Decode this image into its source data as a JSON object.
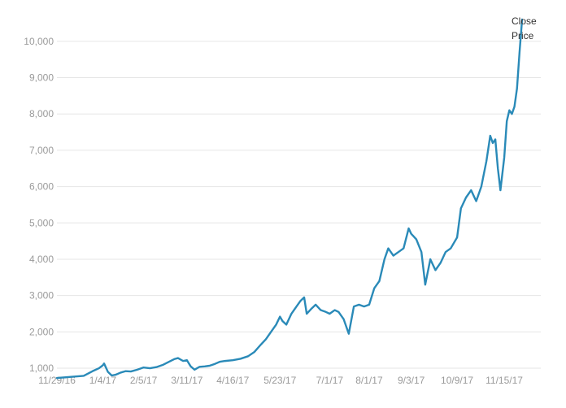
{
  "chart_data": {
    "type": "line",
    "title": "",
    "xlabel": "",
    "ylabel": "",
    "legend": {
      "lines": [
        "Close",
        "Price"
      ],
      "placement": "top-right"
    },
    "grid": {
      "horizontal": true,
      "vertical": false
    },
    "ylim": [
      800,
      10600
    ],
    "yticks": [
      1000,
      2000,
      3000,
      4000,
      5000,
      6000,
      7000,
      8000,
      9000,
      10000
    ],
    "ytick_labels": [
      "1,000",
      "2,000",
      "3,000",
      "4,000",
      "5,000",
      "6,000",
      "7,000",
      "8,000",
      "9,000",
      "10,000"
    ],
    "xticks": [
      "2016-11-29",
      "2017-01-04",
      "2017-02-05",
      "2017-03-11",
      "2017-04-16",
      "2017-05-23",
      "2017-07-01",
      "2017-08-01",
      "2017-09-03",
      "2017-10-09",
      "2017-11-15"
    ],
    "xtick_labels": [
      "11/29/16",
      "1/4/17",
      "2/5/17",
      "3/11/17",
      "4/16/17",
      "5/23/17",
      "7/1/17",
      "8/1/17",
      "9/3/17",
      "10/9/17",
      "11/15/17"
    ],
    "xlim": [
      "2016-11-29",
      "2017-11-29"
    ],
    "colors": {
      "line": "#2a8ab8",
      "grid": "#e6e6e6",
      "tick_text": "#9a9a9a"
    },
    "series": [
      {
        "name": "Close Price",
        "points": [
          [
            "2016-11-29",
            730
          ],
          [
            "2016-12-06",
            750
          ],
          [
            "2016-12-13",
            770
          ],
          [
            "2016-12-20",
            790
          ],
          [
            "2016-12-27",
            920
          ],
          [
            "2017-01-01",
            1000
          ],
          [
            "2017-01-04",
            1080
          ],
          [
            "2017-01-05",
            1130
          ],
          [
            "2017-01-08",
            900
          ],
          [
            "2017-01-11",
            800
          ],
          [
            "2017-01-14",
            820
          ],
          [
            "2017-01-18",
            880
          ],
          [
            "2017-01-22",
            920
          ],
          [
            "2017-01-26",
            910
          ],
          [
            "2017-01-31",
            960
          ],
          [
            "2017-02-05",
            1020
          ],
          [
            "2017-02-10",
            1000
          ],
          [
            "2017-02-15",
            1030
          ],
          [
            "2017-02-20",
            1090
          ],
          [
            "2017-02-25",
            1180
          ],
          [
            "2017-03-01",
            1250
          ],
          [
            "2017-03-04",
            1280
          ],
          [
            "2017-03-08",
            1200
          ],
          [
            "2017-03-11",
            1220
          ],
          [
            "2017-03-14",
            1050
          ],
          [
            "2017-03-17",
            960
          ],
          [
            "2017-03-21",
            1040
          ],
          [
            "2017-03-25",
            1050
          ],
          [
            "2017-03-29",
            1070
          ],
          [
            "2017-04-02",
            1120
          ],
          [
            "2017-04-06",
            1180
          ],
          [
            "2017-04-10",
            1200
          ],
          [
            "2017-04-16",
            1220
          ],
          [
            "2017-04-22",
            1260
          ],
          [
            "2017-04-28",
            1330
          ],
          [
            "2017-05-03",
            1450
          ],
          [
            "2017-05-08",
            1650
          ],
          [
            "2017-05-12",
            1800
          ],
          [
            "2017-05-16",
            2000
          ],
          [
            "2017-05-20",
            2200
          ],
          [
            "2017-05-23",
            2420
          ],
          [
            "2017-05-25",
            2300
          ],
          [
            "2017-05-28",
            2200
          ],
          [
            "2017-06-01",
            2500
          ],
          [
            "2017-06-05",
            2700
          ],
          [
            "2017-06-08",
            2850
          ],
          [
            "2017-06-11",
            2950
          ],
          [
            "2017-06-13",
            2500
          ],
          [
            "2017-06-17",
            2650
          ],
          [
            "2017-06-20",
            2750
          ],
          [
            "2017-06-24",
            2600
          ],
          [
            "2017-06-28",
            2550
          ],
          [
            "2017-07-01",
            2500
          ],
          [
            "2017-07-05",
            2600
          ],
          [
            "2017-07-08",
            2550
          ],
          [
            "2017-07-12",
            2350
          ],
          [
            "2017-07-16",
            1950
          ],
          [
            "2017-07-20",
            2700
          ],
          [
            "2017-07-24",
            2750
          ],
          [
            "2017-07-28",
            2700
          ],
          [
            "2017-08-01",
            2750
          ],
          [
            "2017-08-05",
            3200
          ],
          [
            "2017-08-09",
            3400
          ],
          [
            "2017-08-13",
            4000
          ],
          [
            "2017-08-16",
            4300
          ],
          [
            "2017-08-20",
            4100
          ],
          [
            "2017-08-24",
            4200
          ],
          [
            "2017-08-28",
            4300
          ],
          [
            "2017-09-01",
            4850
          ],
          [
            "2017-09-03",
            4700
          ],
          [
            "2017-09-07",
            4550
          ],
          [
            "2017-09-11",
            4200
          ],
          [
            "2017-09-14",
            3300
          ],
          [
            "2017-09-18",
            4000
          ],
          [
            "2017-09-22",
            3700
          ],
          [
            "2017-09-26",
            3900
          ],
          [
            "2017-09-30",
            4200
          ],
          [
            "2017-10-04",
            4300
          ],
          [
            "2017-10-09",
            4600
          ],
          [
            "2017-10-12",
            5400
          ],
          [
            "2017-10-16",
            5700
          ],
          [
            "2017-10-20",
            5900
          ],
          [
            "2017-10-24",
            5600
          ],
          [
            "2017-10-28",
            6000
          ],
          [
            "2017-11-01",
            6700
          ],
          [
            "2017-11-04",
            7400
          ],
          [
            "2017-11-06",
            7200
          ],
          [
            "2017-11-08",
            7300
          ],
          [
            "2017-11-10",
            6500
          ],
          [
            "2017-11-12",
            5900
          ],
          [
            "2017-11-15",
            6800
          ],
          [
            "2017-11-17",
            7800
          ],
          [
            "2017-11-19",
            8100
          ],
          [
            "2017-11-21",
            8000
          ],
          [
            "2017-11-23",
            8200
          ],
          [
            "2017-11-25",
            8700
          ],
          [
            "2017-11-27",
            9700
          ],
          [
            "2017-11-29",
            10600
          ]
        ]
      }
    ]
  }
}
